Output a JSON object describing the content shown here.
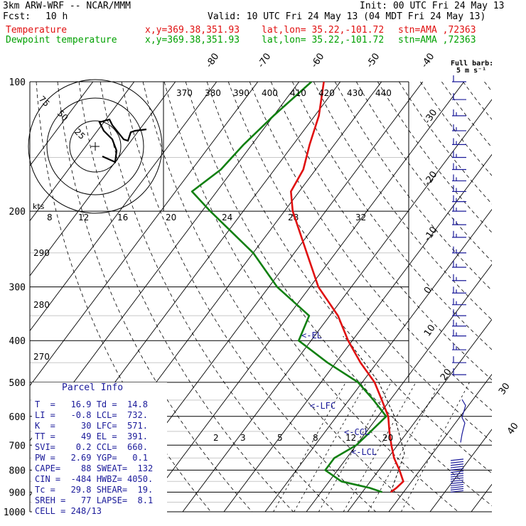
{
  "header": {
    "model": "3km ARW-WRF -- NCAR/MMM",
    "fcst_label": "Fcst:",
    "fcst_value": "10 h",
    "init": "Init: 00 UTC Fri 24 May 13",
    "valid": "Valid: 10 UTC Fri 24 May 13 (04 MDT Fri 24 May 13)",
    "temperature": {
      "label": "Temperature",
      "xy": "x,y=369.38,351.93",
      "latlon": "lat,lon= 35.22,-101.72",
      "stn": "stn=AMA ,72363"
    },
    "dewpoint": {
      "label": "Dewpoint temperature",
      "xy": "x,y=369.38,351.93",
      "latlon": "lat,lon= 35.22,-101.72",
      "stn": "stn=AMA ,72363"
    }
  },
  "colors": {
    "temperature": "#e01010",
    "dewpoint": "#108010",
    "wind": "#1a1a9a",
    "grid": "#000000"
  },
  "barb_legend": {
    "line1": "Full barb:",
    "line2": "5 m s⁻¹"
  },
  "parcel_info": {
    "title": "Parcel Info",
    "rows": [
      "T  =   16.9 Td =  14.8",
      "LI =   -0.8 LCL=  732.",
      "K  =     30 LFC=  571.",
      "TT =     49 EL =  391.",
      "SVI=    0.2 CCL=  660.",
      "PW =   2.69 YGP=   0.1",
      "CAPE=    88 SWEAT=  132",
      "CIN =  -484 HWBZ= 4050.",
      "Tc =   29.8 SHEAR=  19.",
      "SREH =   77 LAPSE=  8.1",
      "CELL = 248/13"
    ]
  },
  "chart_data": {
    "type": "line",
    "title": "",
    "xlabel": "",
    "ylabel": "",
    "y_scale": "log-pressure (hPa)",
    "pressure_levels": [
      100,
      200,
      300,
      400,
      500,
      600,
      700,
      800,
      900,
      1000
    ],
    "pressure_labels": [
      "100",
      "200",
      "300",
      "400",
      "500",
      "600",
      "700",
      "800",
      "900",
      "1000"
    ],
    "isotherm_labels": [
      "-80",
      "-70",
      "-60",
      "-50",
      "-40",
      "-30",
      "-20",
      "-10",
      "0",
      "10",
      "20",
      "30",
      "40"
    ],
    "theta_labels": [
      "370",
      "380",
      "390",
      "400",
      "410",
      "420",
      "430",
      "440"
    ],
    "theta_labels_left": [
      "290",
      "280",
      "270"
    ],
    "mixing_ratio_labels": [
      "2",
      "3",
      "5",
      "8",
      "12",
      "20"
    ],
    "hodograph": {
      "unit": "kts",
      "ring_labels": [
        "75",
        "50",
        "25"
      ],
      "axis_labels": [
        "8",
        "12",
        "16",
        "20",
        "24",
        "28",
        "32"
      ]
    },
    "annotations": [
      "<-EL",
      "<-LFC",
      "<-CCL",
      "<-LCL"
    ],
    "series": [
      {
        "name": "Temperature",
        "points": [
          [
            100,
            -74
          ],
          [
            120,
            -69
          ],
          [
            140,
            -66
          ],
          [
            160,
            -63
          ],
          [
            180,
            -62
          ],
          [
            200,
            -58
          ],
          [
            250,
            -47
          ],
          [
            300,
            -38
          ],
          [
            350,
            -28
          ],
          [
            400,
            -21
          ],
          [
            450,
            -14
          ],
          [
            500,
            -7
          ],
          [
            550,
            -2
          ],
          [
            600,
            2.5
          ],
          [
            650,
            5.5
          ],
          [
            700,
            8.5
          ],
          [
            750,
            11.5
          ],
          [
            800,
            15
          ],
          [
            850,
            18
          ],
          [
            880,
            17.5
          ],
          [
            900,
            16.9
          ]
        ]
      },
      {
        "name": "Dewpoint temperature",
        "points": [
          [
            100,
            -77
          ],
          [
            120,
            -80
          ],
          [
            140,
            -82
          ],
          [
            160,
            -83
          ],
          [
            180,
            -86
          ],
          [
            200,
            -78
          ],
          [
            250,
            -60
          ],
          [
            300,
            -48
          ],
          [
            350,
            -35
          ],
          [
            400,
            -33
          ],
          [
            450,
            -22
          ],
          [
            500,
            -11
          ],
          [
            550,
            -4
          ],
          [
            600,
            2
          ],
          [
            650,
            1
          ],
          [
            700,
            0
          ],
          [
            750,
            -3
          ],
          [
            800,
            -3
          ],
          [
            850,
            3
          ],
          [
            880,
            11
          ],
          [
            900,
            14.8
          ]
        ]
      }
    ],
    "wind_barbs": [
      {
        "p": 100,
        "speed": 10
      },
      {
        "p": 110,
        "speed": 10
      },
      {
        "p": 120,
        "speed": 15
      },
      {
        "p": 130,
        "speed": 15
      },
      {
        "p": 140,
        "speed": 15
      },
      {
        "p": 150,
        "speed": 15
      },
      {
        "p": 160,
        "speed": 15
      },
      {
        "p": 170,
        "speed": 15
      },
      {
        "p": 180,
        "speed": 15
      },
      {
        "p": 190,
        "speed": 15
      },
      {
        "p": 200,
        "speed": 15
      },
      {
        "p": 215,
        "speed": 15
      },
      {
        "p": 230,
        "speed": 15
      },
      {
        "p": 250,
        "speed": 15
      },
      {
        "p": 270,
        "speed": 15
      },
      {
        "p": 290,
        "speed": 15
      },
      {
        "p": 310,
        "speed": 15
      },
      {
        "p": 330,
        "speed": 15
      },
      {
        "p": 350,
        "speed": 15
      },
      {
        "p": 370,
        "speed": 15
      },
      {
        "p": 390,
        "speed": 15
      },
      {
        "p": 420,
        "speed": 15
      },
      {
        "p": 450,
        "speed": 10
      },
      {
        "p": 480,
        "speed": 10
      }
    ]
  }
}
